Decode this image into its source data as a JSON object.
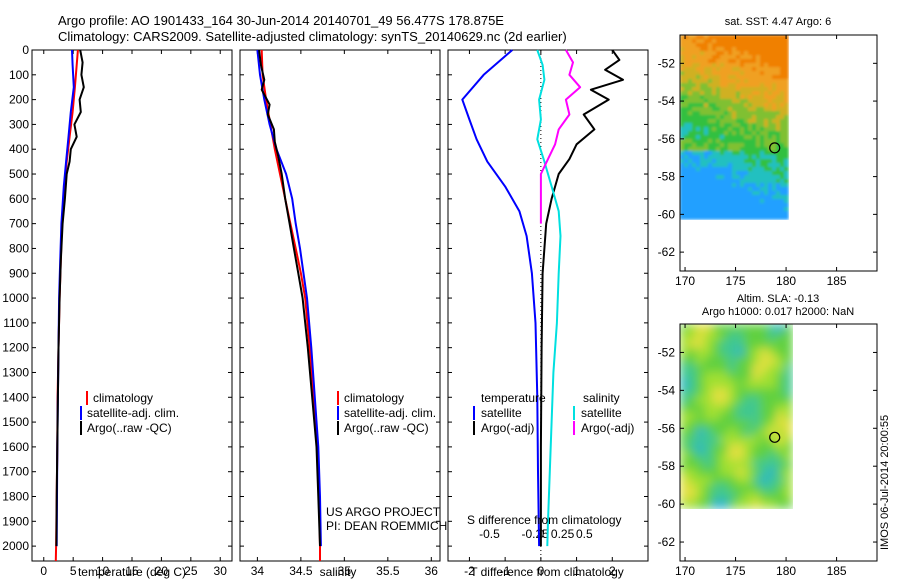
{
  "header": {
    "line1": "Argo profile: AO 1901433_164 30-Jun-2014 20140701_49 56.477S 178.875E",
    "line2": "Climatology: CARS2009. Satellite-adjusted climatology: synTS_20140629.nc (2d earlier)"
  },
  "colors": {
    "climatology": "#ff0000",
    "satellite": "#0000ff",
    "argo": "#000000",
    "sal_sat": "#00e0e0",
    "sal_argo": "#ff00ff"
  },
  "depth_ticks": [
    0,
    100,
    200,
    300,
    400,
    500,
    600,
    700,
    800,
    900,
    1000,
    1100,
    1200,
    1300,
    1400,
    1500,
    1600,
    1700,
    1800,
    1900,
    2000
  ],
  "chart_data": [
    {
      "type": "line",
      "id": "temperature",
      "xlabel": "temperature (deg C)",
      "xlim": [
        -2,
        32
      ],
      "ylim": [
        2060,
        0
      ],
      "xticks": [
        0,
        5,
        10,
        15,
        20,
        25,
        30
      ],
      "legend": [
        "climatology",
        "satellite-adj. clim.",
        "Argo(..raw -QC)"
      ],
      "legend_position": "lower-left",
      "series": [
        {
          "name": "climatology",
          "color": "#ff0000",
          "points": [
            [
              5.8,
              0
            ],
            [
              5.6,
              60
            ],
            [
              5.3,
              150
            ],
            [
              4.9,
              250
            ],
            [
              4.4,
              350
            ],
            [
              3.9,
              450
            ],
            [
              3.5,
              550
            ],
            [
              3.1,
              700
            ],
            [
              2.9,
              850
            ],
            [
              2.7,
              1000
            ],
            [
              2.5,
              1200
            ],
            [
              2.35,
              1400
            ],
            [
              2.3,
              1600
            ],
            [
              2.2,
              1800
            ],
            [
              2.1,
              2000
            ],
            [
              2.05,
              2060
            ]
          ]
        },
        {
          "name": "satellite-adj. clim.",
          "color": "#0000ff",
          "points": [
            [
              4.8,
              0
            ],
            [
              4.9,
              60
            ],
            [
              5.1,
              150
            ],
            [
              4.6,
              250
            ],
            [
              4.2,
              350
            ],
            [
              3.8,
              450
            ],
            [
              3.4,
              550
            ],
            [
              3.0,
              700
            ],
            [
              2.8,
              850
            ],
            [
              2.6,
              1000
            ],
            [
              2.5,
              1200
            ],
            [
              2.4,
              1400
            ],
            [
              2.3,
              1600
            ],
            [
              2.25,
              1800
            ],
            [
              2.2,
              2000
            ]
          ]
        },
        {
          "name": "Argo(..raw -QC)",
          "color": "#000000",
          "points": [
            [
              6.2,
              0
            ],
            [
              6.6,
              50
            ],
            [
              6.4,
              100
            ],
            [
              6.8,
              150
            ],
            [
              6.1,
              200
            ],
            [
              6.3,
              250
            ],
            [
              5.2,
              300
            ],
            [
              5.6,
              350
            ],
            [
              4.6,
              400
            ],
            [
              4.4,
              450
            ],
            [
              3.9,
              500
            ],
            [
              3.6,
              600
            ],
            [
              3.2,
              700
            ],
            [
              2.9,
              850
            ],
            [
              2.7,
              1000
            ],
            [
              2.5,
              1200
            ],
            [
              2.4,
              1400
            ],
            [
              2.3,
              1600
            ],
            [
              2.2,
              1800
            ],
            [
              2.15,
              2000
            ]
          ]
        }
      ]
    },
    {
      "type": "line",
      "id": "salinity",
      "xlabel": "salinity",
      "xlim": [
        33.8,
        36.1
      ],
      "ylim": [
        2060,
        0
      ],
      "xticks": [
        34,
        34.5,
        35,
        35.5,
        36
      ],
      "xticklabels": [
        "34",
        "34.5",
        "35",
        "35.5",
        "36"
      ],
      "legend": [
        "climatology",
        "satellite-adj. clim.",
        "Argo(..raw -QC)"
      ],
      "legend_position": "lower-left",
      "annotation": [
        "US ARGO PROJECT",
        "PI: DEAN ROEMMICH"
      ],
      "series": [
        {
          "name": "climatology",
          "color": "#ff0000",
          "points": [
            [
              34.05,
              0
            ],
            [
              34.06,
              100
            ],
            [
              34.1,
              200
            ],
            [
              34.15,
              300
            ],
            [
              34.2,
              400
            ],
            [
              34.26,
              500
            ],
            [
              34.32,
              600
            ],
            [
              34.38,
              700
            ],
            [
              34.44,
              800
            ],
            [
              34.5,
              900
            ],
            [
              34.55,
              1000
            ],
            [
              34.6,
              1200
            ],
            [
              34.65,
              1400
            ],
            [
              34.69,
              1600
            ],
            [
              34.71,
              1800
            ],
            [
              34.72,
              2000
            ],
            [
              34.72,
              2060
            ]
          ]
        },
        {
          "name": "satellite-adj. clim.",
          "color": "#0000ff",
          "points": [
            [
              34.0,
              0
            ],
            [
              34.03,
              100
            ],
            [
              34.08,
              200
            ],
            [
              34.14,
              300
            ],
            [
              34.22,
              400
            ],
            [
              34.33,
              500
            ],
            [
              34.4,
              600
            ],
            [
              34.44,
              700
            ],
            [
              34.49,
              800
            ],
            [
              34.53,
              900
            ],
            [
              34.57,
              1000
            ],
            [
              34.62,
              1200
            ],
            [
              34.66,
              1400
            ],
            [
              34.7,
              1600
            ],
            [
              34.72,
              1800
            ],
            [
              34.73,
              2000
            ]
          ]
        },
        {
          "name": "Argo(..raw -QC)",
          "color": "#000000",
          "points": [
            [
              34.02,
              0
            ],
            [
              34.04,
              60
            ],
            [
              34.08,
              120
            ],
            [
              34.05,
              160
            ],
            [
              34.14,
              220
            ],
            [
              34.12,
              260
            ],
            [
              34.19,
              320
            ],
            [
              34.2,
              370
            ],
            [
              34.24,
              430
            ],
            [
              34.28,
              500
            ],
            [
              34.32,
              600
            ],
            [
              34.37,
              700
            ],
            [
              34.42,
              800
            ],
            [
              34.47,
              900
            ],
            [
              34.52,
              1000
            ],
            [
              34.58,
              1200
            ],
            [
              34.63,
              1400
            ],
            [
              34.68,
              1600
            ],
            [
              34.7,
              1800
            ],
            [
              34.72,
              2000
            ]
          ]
        }
      ]
    },
    {
      "type": "line",
      "id": "difference",
      "xlabel": "T difference from climatology",
      "xlabel_top": "S difference from climatology",
      "xlim": [
        -2.6,
        3.0
      ],
      "ylim": [
        2060,
        0
      ],
      "xticks": [
        -2,
        -1,
        0,
        1,
        2
      ],
      "xticklabels": [
        "-2",
        "-1",
        "0",
        "1",
        "2"
      ],
      "s_xticklabels": [
        "-0.5",
        "-0.25",
        "0",
        "0.25",
        "0.5"
      ],
      "legend_groups": [
        {
          "title": "temperature",
          "items": [
            "satellite",
            "Argo(-adj)"
          ]
        },
        {
          "title": "salinity",
          "items": [
            "satellite",
            "Argo(-adj)"
          ]
        }
      ],
      "series": [
        {
          "name": "satellite",
          "group": "temperature",
          "color": "#0000ff",
          "points": [
            [
              -0.8,
              0
            ],
            [
              -1.6,
              100
            ],
            [
              -2.2,
              200
            ],
            [
              -2.0,
              280
            ],
            [
              -1.8,
              360
            ],
            [
              -1.5,
              450
            ],
            [
              -1.0,
              550
            ],
            [
              -0.6,
              650
            ],
            [
              -0.4,
              750
            ],
            [
              -0.25,
              900
            ],
            [
              -0.15,
              1100
            ],
            [
              -0.1,
              1400
            ],
            [
              -0.08,
              1700
            ],
            [
              -0.05,
              2000
            ]
          ]
        },
        {
          "name": "Argo(-adj)",
          "group": "temperature",
          "color": "#000000",
          "points": [
            [
              2.0,
              0
            ],
            [
              2.2,
              40
            ],
            [
              1.8,
              80
            ],
            [
              2.3,
              120
            ],
            [
              1.4,
              160
            ],
            [
              1.9,
              200
            ],
            [
              1.2,
              260
            ],
            [
              1.5,
              320
            ],
            [
              1.0,
              380
            ],
            [
              0.8,
              440
            ],
            [
              0.5,
              500
            ],
            [
              0.3,
              600
            ],
            [
              0.15,
              700
            ],
            [
              0.05,
              900
            ],
            [
              0.02,
              1200
            ],
            [
              0.0,
              1600
            ],
            [
              0.0,
              2000
            ]
          ]
        },
        {
          "name": "satellite",
          "group": "salinity",
          "color": "#00e0e0",
          "points": [
            [
              -0.1,
              0
            ],
            [
              0.05,
              60
            ],
            [
              0.1,
              120
            ],
            [
              -0.05,
              200
            ],
            [
              0.0,
              280
            ],
            [
              -0.1,
              360
            ],
            [
              0.1,
              450
            ],
            [
              0.3,
              550
            ],
            [
              0.5,
              650
            ],
            [
              0.55,
              750
            ],
            [
              0.5,
              900
            ],
            [
              0.45,
              1100
            ],
            [
              0.35,
              1300
            ],
            [
              0.3,
              1500
            ],
            [
              0.25,
              1700
            ],
            [
              0.2,
              1900
            ],
            [
              0.18,
              2000
            ]
          ]
        },
        {
          "name": "Argo(-adj)",
          "group": "salinity",
          "color": "#ff00ff",
          "points": [
            [
              0.7,
              0
            ],
            [
              0.9,
              50
            ],
            [
              0.8,
              100
            ],
            [
              1.1,
              150
            ],
            [
              0.7,
              200
            ],
            [
              0.8,
              260
            ],
            [
              0.5,
              320
            ],
            [
              0.4,
              380
            ],
            [
              0.2,
              440
            ],
            [
              0.0,
              500
            ],
            [
              0.0,
              700
            ]
          ]
        }
      ]
    }
  ],
  "maps": [
    {
      "title": "sat. SST: 4.47 Argo: 6",
      "yticks": [
        -62,
        -60,
        -58,
        -56,
        -54,
        -52
      ],
      "xticks": [
        170,
        175,
        180,
        185
      ],
      "xlim": [
        169.5,
        189
      ],
      "ylim": [
        -63,
        -50.5
      ],
      "data_extent": {
        "lon": [
          169.5,
          180
        ],
        "lat": [
          -60.2,
          -50.5
        ]
      },
      "marker": {
        "lon": 178.875,
        "lat": -56.477
      }
    },
    {
      "title": "Altim. SLA: -0.13",
      "subtitle": "Argo h1000: 0.017 h2000: NaN",
      "yticks": [
        -62,
        -60,
        -58,
        -56,
        -54,
        -52
      ],
      "xticks": [
        170,
        175,
        180,
        185
      ],
      "xlim": [
        169.5,
        189
      ],
      "ylim": [
        -63,
        -50.5
      ],
      "data_extent": {
        "lon": [
          169.5,
          180
        ],
        "lat": [
          -60.2,
          -50.5
        ]
      },
      "marker": {
        "lon": 178.875,
        "lat": -56.477
      }
    }
  ],
  "footer": {
    "stamp": "IMOS 06-Jul-2014 20:00:55"
  }
}
